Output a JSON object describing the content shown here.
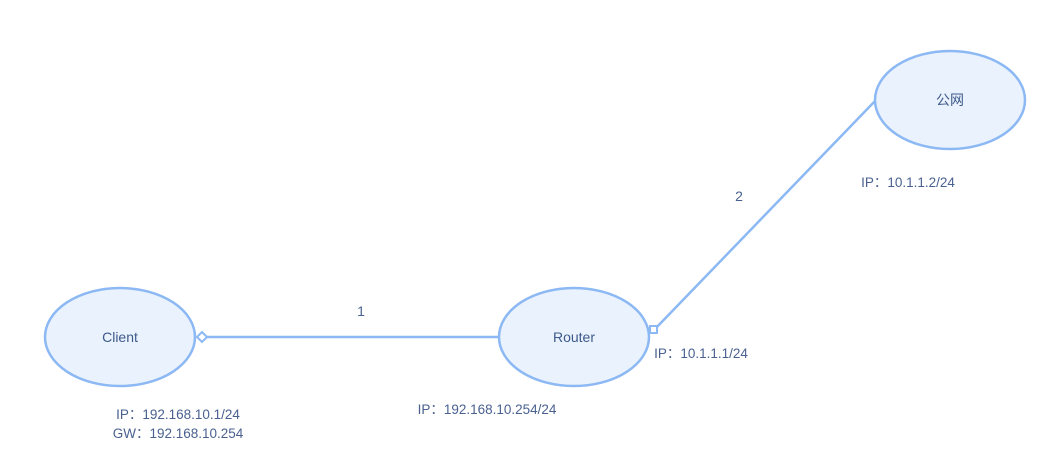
{
  "nodes": {
    "client": {
      "label": "Client",
      "ip": "IP：192.168.10.1/24",
      "gw": "GW：192.168.10.254"
    },
    "router": {
      "label": "Router",
      "ip_lan": "IP：192.168.10.254/24",
      "ip_wan": "IP：10.1.1.1/24"
    },
    "public": {
      "label": "公网",
      "ip": "IP：10.1.1.2/24"
    }
  },
  "links": {
    "link1": {
      "label": "1"
    },
    "link2": {
      "label": "2"
    }
  },
  "colors": {
    "node_fill": "#eaf2fd",
    "node_stroke": "#8cb8f4",
    "text": "#4a6190"
  }
}
